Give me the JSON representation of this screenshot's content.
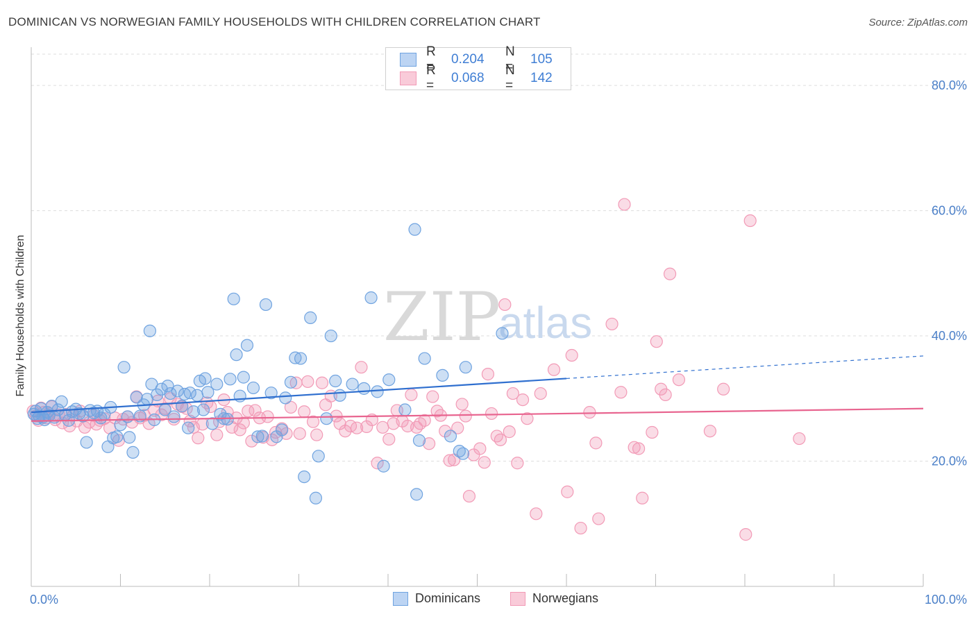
{
  "title": "DOMINICAN VS NORWEGIAN FAMILY HOUSEHOLDS WITH CHILDREN CORRELATION CHART",
  "source": "Source: ZipAtlas.com",
  "watermark": {
    "zip": "ZIP",
    "atlas": "atlas"
  },
  "legend": {
    "rows": [
      {
        "r_label": "R =",
        "r_value": "0.204",
        "n_label": "N =",
        "n_value": "105"
      },
      {
        "r_label": "R =",
        "r_value": "0.068",
        "n_label": "N =",
        "n_value": "142"
      }
    ]
  },
  "bottom_legend": {
    "dominicans": "Dominicans",
    "norwegians": "Norwegians"
  },
  "chart_data": {
    "type": "scatter",
    "title": "DOMINICAN VS NORWEGIAN FAMILY HOUSEHOLDS WITH CHILDREN CORRELATION CHART",
    "xlabel": "",
    "ylabel": "Family Households with Children",
    "xlim": [
      0,
      100
    ],
    "ylim": [
      0,
      85
    ],
    "x_tick_labels": [
      "0.0%",
      "100.0%"
    ],
    "y_ticks": [
      20,
      40,
      60,
      80
    ],
    "y_tick_labels": [
      "20.0%",
      "40.0%",
      "60.0%",
      "80.0%"
    ],
    "grid": true,
    "legend_position": "top-center",
    "colors": {
      "dominicans": "#6fa3e0",
      "norwegians": "#f29ab6",
      "blue_line": "#2f6fcf",
      "pink_line": "#e8648f"
    },
    "series": [
      {
        "name": "Dominicans",
        "trend": {
          "x0": 0,
          "y0": 27.8,
          "x1": 60,
          "y1": 33.2,
          "dashed_to_x": 100,
          "dashed_to_y": 36.8
        },
        "points": [
          [
            0.3,
            27.5
          ],
          [
            0.5,
            28.0
          ],
          [
            0.7,
            26.8
          ],
          [
            0.9,
            27.2
          ],
          [
            1.1,
            28.4
          ],
          [
            1.3,
            27.0
          ],
          [
            1.5,
            26.6
          ],
          [
            1.8,
            27.8
          ],
          [
            2.0,
            27.3
          ],
          [
            2.3,
            28.8
          ],
          [
            2.6,
            27.0
          ],
          [
            3.0,
            28.2
          ],
          [
            3.4,
            29.5
          ],
          [
            3.8,
            27.4
          ],
          [
            4.2,
            26.5
          ],
          [
            4.6,
            27.9
          ],
          [
            5.0,
            28.3
          ],
          [
            5.4,
            27.6
          ],
          [
            5.8,
            27.2
          ],
          [
            6.2,
            23.0
          ],
          [
            6.6,
            28.1
          ],
          [
            7.0,
            27.7
          ],
          [
            7.4,
            28.0
          ],
          [
            7.8,
            26.9
          ],
          [
            8.2,
            27.5
          ],
          [
            8.6,
            22.3
          ],
          [
            8.9,
            28.6
          ],
          [
            9.2,
            23.7
          ],
          [
            9.6,
            23.9
          ],
          [
            10.0,
            25.8
          ],
          [
            10.4,
            35.0
          ],
          [
            10.8,
            27.1
          ],
          [
            11.0,
            23.8
          ],
          [
            11.4,
            21.4
          ],
          [
            11.8,
            30.2
          ],
          [
            12.2,
            27.2
          ],
          [
            12.6,
            29.0
          ],
          [
            13.0,
            29.9
          ],
          [
            13.3,
            40.8
          ],
          [
            13.5,
            32.3
          ],
          [
            13.8,
            26.6
          ],
          [
            14.1,
            30.6
          ],
          [
            14.6,
            31.5
          ],
          [
            15.0,
            28.2
          ],
          [
            15.3,
            32.0
          ],
          [
            15.6,
            30.8
          ],
          [
            16.0,
            27.1
          ],
          [
            16.4,
            31.2
          ],
          [
            16.9,
            28.8
          ],
          [
            17.2,
            30.7
          ],
          [
            17.8,
            30.9
          ],
          [
            17.6,
            25.3
          ],
          [
            18.2,
            27.9
          ],
          [
            18.6,
            30.5
          ],
          [
            18.9,
            32.8
          ],
          [
            19.3,
            28.2
          ],
          [
            19.8,
            31.0
          ],
          [
            19.5,
            33.2
          ],
          [
            20.3,
            26.0
          ],
          [
            20.8,
            32.3
          ],
          [
            21.2,
            27.5
          ],
          [
            21.6,
            26.8
          ],
          [
            22.0,
            26.7
          ],
          [
            22.3,
            33.1
          ],
          [
            22.7,
            45.9
          ],
          [
            23.0,
            37.0
          ],
          [
            23.4,
            30.4
          ],
          [
            23.8,
            33.4
          ],
          [
            24.2,
            38.5
          ],
          [
            24.9,
            31.7
          ],
          [
            25.4,
            23.9
          ],
          [
            25.9,
            24.0
          ],
          [
            26.3,
            45.0
          ],
          [
            26.9,
            30.9
          ],
          [
            27.5,
            23.9
          ],
          [
            28.1,
            25.0
          ],
          [
            28.5,
            30.1
          ],
          [
            29.1,
            32.6
          ],
          [
            29.6,
            36.5
          ],
          [
            30.2,
            36.4
          ],
          [
            30.6,
            17.5
          ],
          [
            31.3,
            42.9
          ],
          [
            31.9,
            14.1
          ],
          [
            32.2,
            20.8
          ],
          [
            33.1,
            26.8
          ],
          [
            33.6,
            40.0
          ],
          [
            34.1,
            32.8
          ],
          [
            34.6,
            30.5
          ],
          [
            36.0,
            32.3
          ],
          [
            37.3,
            31.6
          ],
          [
            38.1,
            46.1
          ],
          [
            38.8,
            31.1
          ],
          [
            39.5,
            19.2
          ],
          [
            40.1,
            33.0
          ],
          [
            41.9,
            28.2
          ],
          [
            43.0,
            57.0
          ],
          [
            43.2,
            14.7
          ],
          [
            43.5,
            23.3
          ],
          [
            44.1,
            36.4
          ],
          [
            46.1,
            33.7
          ],
          [
            47.0,
            24.0
          ],
          [
            48.0,
            21.6
          ],
          [
            48.4,
            21.2
          ],
          [
            48.7,
            35.0
          ],
          [
            52.8,
            40.4
          ]
        ]
      },
      {
        "name": "Norwegians",
        "trend": {
          "x0": 0,
          "y0": 26.4,
          "x1": 100,
          "y1": 28.4
        },
        "points": [
          [
            0.2,
            28.0
          ],
          [
            0.5,
            27.2
          ],
          [
            0.8,
            26.5
          ],
          [
            1.1,
            28.5
          ],
          [
            1.4,
            27.8
          ],
          [
            1.7,
            26.9
          ],
          [
            2.0,
            27.6
          ],
          [
            2.3,
            28.7
          ],
          [
            2.7,
            26.6
          ],
          [
            3.1,
            27.4
          ],
          [
            3.5,
            26.1
          ],
          [
            3.9,
            27.5
          ],
          [
            4.3,
            25.6
          ],
          [
            4.7,
            27.3
          ],
          [
            5.1,
            26.4
          ],
          [
            5.5,
            28.0
          ],
          [
            6.0,
            25.4
          ],
          [
            6.5,
            26.2
          ],
          [
            7.0,
            27.3
          ],
          [
            7.3,
            25.9
          ],
          [
            7.7,
            26.5
          ],
          [
            8.2,
            26.8
          ],
          [
            8.8,
            25.3
          ],
          [
            9.4,
            26.9
          ],
          [
            9.8,
            23.3
          ],
          [
            10.3,
            26.7
          ],
          [
            10.8,
            27.1
          ],
          [
            11.3,
            26.2
          ],
          [
            11.8,
            30.3
          ],
          [
            12.2,
            26.9
          ],
          [
            12.7,
            27.3
          ],
          [
            13.2,
            26.0
          ],
          [
            13.8,
            28.1
          ],
          [
            14.2,
            29.6
          ],
          [
            14.6,
            27.4
          ],
          [
            15.0,
            28.4
          ],
          [
            15.6,
            30.0
          ],
          [
            16.0,
            26.7
          ],
          [
            16.4,
            29.1
          ],
          [
            16.9,
            28.7
          ],
          [
            17.4,
            28.4
          ],
          [
            17.8,
            26.4
          ],
          [
            18.2,
            25.4
          ],
          [
            18.7,
            23.7
          ],
          [
            19.2,
            25.9
          ],
          [
            19.7,
            29.3
          ],
          [
            20.1,
            28.7
          ],
          [
            20.8,
            24.2
          ],
          [
            21.1,
            26.3
          ],
          [
            21.6,
            29.8
          ],
          [
            22.0,
            27.8
          ],
          [
            22.5,
            25.4
          ],
          [
            23.0,
            26.9
          ],
          [
            23.4,
            25.0
          ],
          [
            23.8,
            26.1
          ],
          [
            24.3,
            28.0
          ],
          [
            24.7,
            23.2
          ],
          [
            25.1,
            28.1
          ],
          [
            25.6,
            26.9
          ],
          [
            26.0,
            23.8
          ],
          [
            26.5,
            27.1
          ],
          [
            27.0,
            23.4
          ],
          [
            27.4,
            24.6
          ],
          [
            28.1,
            25.2
          ],
          [
            28.6,
            24.4
          ],
          [
            29.1,
            28.6
          ],
          [
            29.7,
            32.5
          ],
          [
            30.1,
            24.4
          ],
          [
            30.6,
            27.9
          ],
          [
            31.0,
            32.7
          ],
          [
            31.6,
            26.3
          ],
          [
            32.0,
            24.2
          ],
          [
            32.6,
            32.5
          ],
          [
            33.0,
            29.0
          ],
          [
            33.6,
            30.4
          ],
          [
            34.2,
            27.2
          ],
          [
            34.6,
            26.0
          ],
          [
            35.2,
            24.8
          ],
          [
            35.8,
            25.6
          ],
          [
            36.5,
            25.3
          ],
          [
            37.0,
            35.0
          ],
          [
            37.6,
            25.5
          ],
          [
            38.2,
            26.6
          ],
          [
            38.8,
            19.7
          ],
          [
            39.4,
            25.4
          ],
          [
            40.1,
            23.5
          ],
          [
            40.6,
            26.0
          ],
          [
            41.0,
            28.1
          ],
          [
            41.6,
            26.4
          ],
          [
            42.2,
            25.6
          ],
          [
            42.6,
            30.6
          ],
          [
            43.2,
            25.4
          ],
          [
            43.6,
            26.0
          ],
          [
            44.1,
            26.5
          ],
          [
            44.6,
            22.8
          ],
          [
            45.0,
            30.3
          ],
          [
            45.5,
            28.0
          ],
          [
            45.9,
            27.3
          ],
          [
            46.4,
            24.8
          ],
          [
            46.9,
            20.1
          ],
          [
            47.4,
            20.2
          ],
          [
            47.8,
            25.3
          ],
          [
            48.3,
            29.1
          ],
          [
            48.7,
            27.2
          ],
          [
            49.1,
            14.4
          ],
          [
            49.6,
            21.0
          ],
          [
            50.3,
            22.0
          ],
          [
            50.8,
            19.8
          ],
          [
            51.2,
            33.9
          ],
          [
            51.6,
            27.6
          ],
          [
            52.2,
            24.0
          ],
          [
            52.6,
            23.4
          ],
          [
            53.1,
            45.0
          ],
          [
            53.6,
            24.7
          ],
          [
            54.0,
            30.8
          ],
          [
            54.5,
            19.7
          ],
          [
            55.1,
            29.8
          ],
          [
            55.6,
            26.8
          ],
          [
            56.6,
            11.6
          ],
          [
            57.1,
            30.8
          ],
          [
            58.6,
            34.6
          ],
          [
            60.1,
            15.1
          ],
          [
            60.6,
            36.9
          ],
          [
            61.6,
            9.3
          ],
          [
            62.6,
            27.8
          ],
          [
            63.3,
            22.9
          ],
          [
            63.6,
            10.8
          ],
          [
            65.1,
            41.9
          ],
          [
            66.1,
            31.0
          ],
          [
            66.5,
            61.0
          ],
          [
            67.6,
            22.2
          ],
          [
            68.1,
            22.0
          ],
          [
            68.5,
            14.1
          ],
          [
            69.6,
            24.6
          ],
          [
            70.1,
            39.1
          ],
          [
            70.6,
            31.5
          ],
          [
            71.1,
            30.6
          ],
          [
            71.6,
            49.9
          ],
          [
            72.6,
            33.0
          ],
          [
            76.1,
            24.8
          ],
          [
            77.6,
            31.5
          ],
          [
            80.1,
            8.3
          ],
          [
            80.6,
            58.4
          ],
          [
            86.1,
            23.6
          ]
        ]
      }
    ]
  }
}
